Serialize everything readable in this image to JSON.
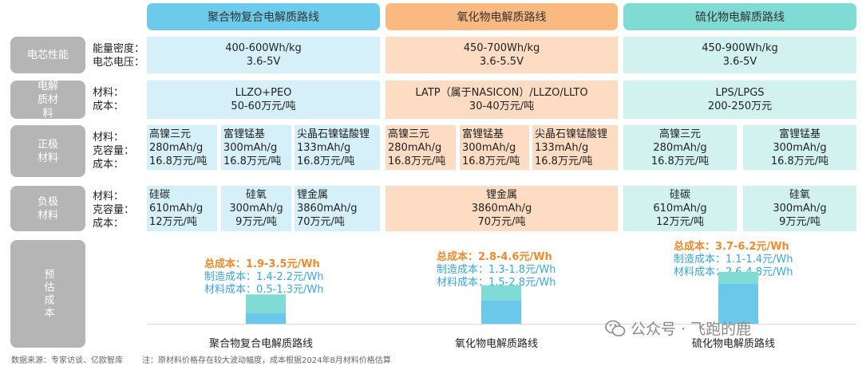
{
  "routes": [
    "聚合物复合电解质路线",
    "氧化物电解质路线",
    "硫化物电解质路线"
  ],
  "row_labels": {
    "cell_perf": "电芯性能",
    "electrolyte": "电解质材料",
    "cathode": "正极材料",
    "anode": "负极材料",
    "cost": "预估成本"
  },
  "field_labels": {
    "perf": [
      "能量密度：",
      "电芯电压："
    ],
    "electrolyte": [
      "材料：",
      "成本："
    ],
    "cathode": [
      "材料：",
      "克容量：",
      "成本："
    ],
    "anode": [
      "材料：",
      "克容量：",
      "成本："
    ]
  },
  "perf": [
    {
      "energy": "400-600Wh/kg",
      "voltage": "3.6-5V"
    },
    {
      "energy": "450-700Wh/kg",
      "voltage": "3.6-5.5V"
    },
    {
      "energy": "450-900Wh/kg",
      "voltage": "3.6-5V"
    }
  ],
  "electrolyte": [
    {
      "material": "LLZO+PEO",
      "cost": "50-60万元/吨"
    },
    {
      "material": "LATP（属于NASICON）/LLZO/LLTO",
      "cost": "30-40万元/吨"
    },
    {
      "material": "LPS/LPGS",
      "cost": "200-250万元"
    }
  ],
  "cathode": [
    [
      {
        "material": "高镍三元",
        "capacity": "280mAh/g",
        "cost": "16.8万元/吨"
      },
      {
        "material": "富锂锰基",
        "capacity": "300mAh/g",
        "cost": "16.8万元/吨"
      },
      {
        "material": "尖晶石镍锰酸锂",
        "capacity": "133mAh/g",
        "cost": "16.8万元/吨"
      }
    ],
    [
      {
        "material": "高镍三元",
        "capacity": "280mAh/g",
        "cost": "16.8万元/吨"
      },
      {
        "material": "富锂锰基",
        "capacity": "300mAh/g",
        "cost": "16.8万元/吨"
      },
      {
        "material": "尖晶石镍锰酸锂",
        "capacity": "133mAh/g",
        "cost": "16.8万元/吨"
      }
    ],
    [
      {
        "material": "高镍三元",
        "capacity": "280mAh/g",
        "cost": "16.8万元/吨"
      },
      {
        "material": "富锂锰基",
        "capacity": "300mAh/g",
        "cost": "16.8万元/吨"
      }
    ]
  ],
  "anode": [
    [
      {
        "material": "硅碳",
        "capacity": "610mAh/g",
        "cost": "12万元/吨"
      },
      {
        "material": "硅氧",
        "capacity": "300mAh/g",
        "cost": "9万元/吨"
      },
      {
        "material": "锂金属",
        "capacity": "3860mAh/g",
        "cost": "70万元/吨"
      }
    ],
    [
      {
        "material": "锂金属",
        "capacity": "3860mAh/g",
        "cost": "70万元/吨"
      }
    ],
    [
      {
        "material": "硅碳",
        "capacity": "610mAh/g",
        "cost": "12万元/吨"
      },
      {
        "material": "硅氧",
        "capacity": "300mAh/g",
        "cost": "9万元/吨"
      }
    ]
  ],
  "chart_data": {
    "type": "bar",
    "title": "预估成本",
    "categories": [
      "聚合物复合电解质路线",
      "氧化物电解质路线",
      "硫化物电解质路线"
    ],
    "unit": "元/Wh",
    "series": [
      {
        "name": "总成本",
        "ranges": [
          [
            1.9,
            3.5
          ],
          [
            2.8,
            4.6
          ],
          [
            3.7,
            6.2
          ]
        ]
      },
      {
        "name": "制造成本",
        "ranges": [
          [
            1.4,
            2.2
          ],
          [
            1.3,
            1.8
          ],
          [
            1.1,
            1.4
          ]
        ]
      },
      {
        "name": "材料成本",
        "ranges": [
          [
            0.5,
            1.3
          ],
          [
            1.5,
            2.8
          ],
          [
            2.6,
            4.8
          ]
        ]
      }
    ],
    "labels": [
      {
        "total": "总成本：1.9-3.5元/Wh",
        "mfg": "制造成本：1.4-2.2元/Wh",
        "mat": "材料成本：0.5-1.3元/Wh"
      },
      {
        "total": "总成本：2.8-4.6元/Wh",
        "mfg": "制造成本：1.3-1.8元/Wh",
        "mat": "材料成本：1.5-2.8元/Wh"
      },
      {
        "total": "总成本：3.7-6.2元/Wh",
        "mfg": "制造成本：1.1-1.4元/Wh",
        "mat": "材料成本：2.6-4.8元/Wh"
      }
    ],
    "colors": {
      "total": "#f08a2c",
      "mfg": "#7fdbd3",
      "mat": "#6cc8ea"
    }
  },
  "footer": {
    "source": "数据来源：专家访谈、亿欧智库",
    "note": "注：原材料价格存在较大波动幅度，成本根据2024年8月材料价格估算"
  },
  "watermark": "公众号 · 飞跑的鹿"
}
